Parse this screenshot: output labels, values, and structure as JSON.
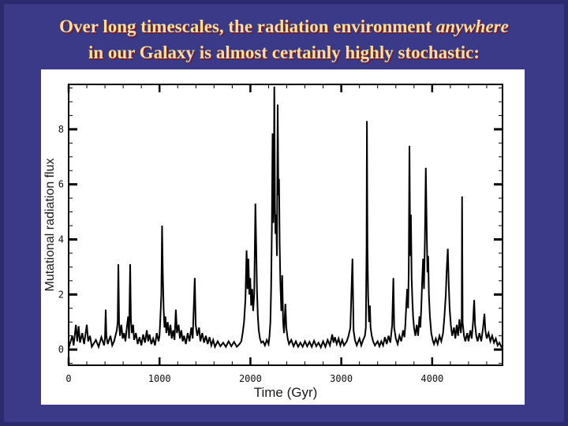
{
  "slide": {
    "title_line1_pre": "Over long timescales, the radiation environment ",
    "title_line1_emph": "anywhere",
    "title_line2": "in our Galaxy is almost certainly highly stochastic:"
  },
  "colors": {
    "background": "#3a3a88",
    "frame_shade": "#2b2a6e",
    "title_text": "#f2dfa6",
    "title_shadow": "#7a1e1e",
    "panel": "#ffffff",
    "axis": "#000000",
    "line": "#000000"
  },
  "chart_data": {
    "type": "line",
    "title": "",
    "xlabel": "Time (Gyr)",
    "ylabel": "Mutational radiation flux",
    "xlim": [
      0,
      4774
    ],
    "ylim": [
      -0.57,
      9.63
    ],
    "xticks_major": [
      0,
      1000,
      2000,
      3000,
      4000
    ],
    "xtick_labels": [
      "0",
      "1000",
      "2000",
      "3000",
      "4000"
    ],
    "xminor_step": 200,
    "yticks_major": [
      0,
      2,
      4,
      6,
      8
    ],
    "ytick_labels": [
      "0",
      "2",
      "4",
      "6",
      "8"
    ],
    "yminor_step": 0.5,
    "grid": false,
    "legend": "none",
    "series": [
      {
        "name": "mutational radiation flux",
        "points": [
          [
            0,
            0.05
          ],
          [
            40,
            0.5
          ],
          [
            55,
            0.15
          ],
          [
            80,
            0.9
          ],
          [
            95,
            0.3
          ],
          [
            110,
            0.85
          ],
          [
            125,
            0.25
          ],
          [
            150,
            0.6
          ],
          [
            170,
            0.2
          ],
          [
            200,
            0.9
          ],
          [
            215,
            0.3
          ],
          [
            235,
            0.5
          ],
          [
            255,
            0.1
          ],
          [
            300,
            0.35
          ],
          [
            330,
            0.1
          ],
          [
            360,
            0.45
          ],
          [
            390,
            0.15
          ],
          [
            400,
            0.4
          ],
          [
            408,
            1.45
          ],
          [
            415,
            0.5
          ],
          [
            430,
            0.2
          ],
          [
            460,
            0.5
          ],
          [
            480,
            0.15
          ],
          [
            500,
            0.3
          ],
          [
            530,
            0.7
          ],
          [
            540,
            1.0
          ],
          [
            547,
            3.1
          ],
          [
            555,
            1.0
          ],
          [
            565,
            0.5
          ],
          [
            580,
            0.9
          ],
          [
            595,
            0.4
          ],
          [
            610,
            0.6
          ],
          [
            625,
            0.3
          ],
          [
            640,
            0.8
          ],
          [
            655,
            1.2
          ],
          [
            665,
            0.4
          ],
          [
            677,
            3.1
          ],
          [
            685,
            1.1
          ],
          [
            695,
            0.6
          ],
          [
            710,
            0.9
          ],
          [
            720,
            0.35
          ],
          [
            740,
            0.6
          ],
          [
            760,
            0.2
          ],
          [
            780,
            0.45
          ],
          [
            800,
            0.15
          ],
          [
            820,
            0.55
          ],
          [
            840,
            0.25
          ],
          [
            860,
            0.7
          ],
          [
            875,
            0.3
          ],
          [
            890,
            0.55
          ],
          [
            910,
            0.2
          ],
          [
            930,
            0.4
          ],
          [
            950,
            0.15
          ],
          [
            970,
            0.6
          ],
          [
            990,
            0.3
          ],
          [
            1000,
            0.5
          ],
          [
            1010,
            1.2
          ],
          [
            1020,
            2.0
          ],
          [
            1028,
            4.5
          ],
          [
            1036,
            2.8
          ],
          [
            1045,
            1.5
          ],
          [
            1055,
            0.8
          ],
          [
            1065,
            1.2
          ],
          [
            1075,
            0.6
          ],
          [
            1090,
            1.0
          ],
          [
            1105,
            0.5
          ],
          [
            1120,
            0.9
          ],
          [
            1135,
            0.4
          ],
          [
            1150,
            0.7
          ],
          [
            1165,
            0.35
          ],
          [
            1180,
            1.45
          ],
          [
            1192,
            0.6
          ],
          [
            1210,
            0.9
          ],
          [
            1225,
            0.4
          ],
          [
            1240,
            0.7
          ],
          [
            1255,
            0.3
          ],
          [
            1270,
            0.5
          ],
          [
            1290,
            0.2
          ],
          [
            1310,
            0.6
          ],
          [
            1330,
            0.3
          ],
          [
            1350,
            0.8
          ],
          [
            1365,
            0.4
          ],
          [
            1388,
            2.6
          ],
          [
            1398,
            0.9
          ],
          [
            1415,
            0.5
          ],
          [
            1435,
            0.8
          ],
          [
            1450,
            0.3
          ],
          [
            1470,
            0.6
          ],
          [
            1490,
            0.25
          ],
          [
            1510,
            0.5
          ],
          [
            1530,
            0.2
          ],
          [
            1550,
            0.45
          ],
          [
            1570,
            0.15
          ],
          [
            1590,
            0.35
          ],
          [
            1610,
            0.1
          ],
          [
            1640,
            0.3
          ],
          [
            1670,
            0.12
          ],
          [
            1700,
            0.25
          ],
          [
            1730,
            0.1
          ],
          [
            1760,
            0.3
          ],
          [
            1790,
            0.12
          ],
          [
            1820,
            0.28
          ],
          [
            1850,
            0.1
          ],
          [
            1880,
            0.2
          ],
          [
            1900,
            0.3
          ],
          [
            1915,
            0.6
          ],
          [
            1930,
            1.0
          ],
          [
            1945,
            1.8
          ],
          [
            1958,
            3.6
          ],
          [
            1968,
            2.2
          ],
          [
            1978,
            3.3
          ],
          [
            1988,
            2.0
          ],
          [
            1998,
            2.6
          ],
          [
            2008,
            1.6
          ],
          [
            2020,
            2.2
          ],
          [
            2030,
            1.4
          ],
          [
            2042,
            2.0
          ],
          [
            2055,
            5.3
          ],
          [
            2063,
            3.9
          ],
          [
            2072,
            2.2
          ],
          [
            2082,
            1.2
          ],
          [
            2092,
            0.7
          ],
          [
            2105,
            0.4
          ],
          [
            2120,
            0.25
          ],
          [
            2140,
            0.3
          ],
          [
            2160,
            0.15
          ],
          [
            2180,
            0.35
          ],
          [
            2200,
            0.2
          ],
          [
            2210,
            0.5
          ],
          [
            2220,
            1.0
          ],
          [
            2228,
            2.2
          ],
          [
            2236,
            4.4
          ],
          [
            2244,
            7.85
          ],
          [
            2252,
            4.6
          ],
          [
            2258,
            5.9
          ],
          [
            2263,
            9.55
          ],
          [
            2270,
            5.2
          ],
          [
            2276,
            4.2
          ],
          [
            2284,
            4.9
          ],
          [
            2292,
            3.4
          ],
          [
            2300,
            8.9
          ],
          [
            2308,
            5.6
          ],
          [
            2315,
            6.2
          ],
          [
            2322,
            3.8
          ],
          [
            2330,
            2.4
          ],
          [
            2340,
            1.4
          ],
          [
            2350,
            2.7
          ],
          [
            2360,
            1.0
          ],
          [
            2370,
            0.6
          ],
          [
            2385,
            1.66
          ],
          [
            2395,
            0.8
          ],
          [
            2410,
            0.4
          ],
          [
            2425,
            0.2
          ],
          [
            2450,
            0.35
          ],
          [
            2475,
            0.12
          ],
          [
            2500,
            0.3
          ],
          [
            2525,
            0.1
          ],
          [
            2550,
            0.25
          ],
          [
            2575,
            0.1
          ],
          [
            2600,
            0.3
          ],
          [
            2625,
            0.12
          ],
          [
            2650,
            0.28
          ],
          [
            2675,
            0.1
          ],
          [
            2700,
            0.32
          ],
          [
            2725,
            0.12
          ],
          [
            2750,
            0.25
          ],
          [
            2775,
            0.08
          ],
          [
            2800,
            0.3
          ],
          [
            2825,
            0.1
          ],
          [
            2850,
            0.35
          ],
          [
            2875,
            0.15
          ],
          [
            2900,
            0.55
          ],
          [
            2915,
            0.25
          ],
          [
            2930,
            0.45
          ],
          [
            2950,
            0.2
          ],
          [
            2970,
            0.4
          ],
          [
            2990,
            0.15
          ],
          [
            3010,
            0.35
          ],
          [
            3030,
            0.15
          ],
          [
            3060,
            0.3
          ],
          [
            3080,
            0.5
          ],
          [
            3100,
            0.8
          ],
          [
            3123,
            3.3
          ],
          [
            3135,
            0.7
          ],
          [
            3150,
            0.35
          ],
          [
            3170,
            0.15
          ],
          [
            3200,
            0.4
          ],
          [
            3220,
            0.15
          ],
          [
            3240,
            0.35
          ],
          [
            3260,
            0.5
          ],
          [
            3270,
            0.8
          ],
          [
            3278,
            3.7
          ],
          [
            3282,
            8.3
          ],
          [
            3288,
            3.7
          ],
          [
            3295,
            2.0
          ],
          [
            3305,
            1.0
          ],
          [
            3315,
            1.6
          ],
          [
            3322,
            0.8
          ],
          [
            3335,
            0.5
          ],
          [
            3350,
            0.3
          ],
          [
            3370,
            0.15
          ],
          [
            3400,
            0.3
          ],
          [
            3420,
            0.12
          ],
          [
            3440,
            0.3
          ],
          [
            3460,
            0.15
          ],
          [
            3480,
            0.45
          ],
          [
            3500,
            0.2
          ],
          [
            3520,
            0.5
          ],
          [
            3540,
            0.25
          ],
          [
            3560,
            0.9
          ],
          [
            3573,
            2.6
          ],
          [
            3582,
            0.8
          ],
          [
            3600,
            0.4
          ],
          [
            3620,
            0.2
          ],
          [
            3640,
            0.5
          ],
          [
            3660,
            0.3
          ],
          [
            3680,
            0.7
          ],
          [
            3695,
            0.45
          ],
          [
            3705,
            0.9
          ],
          [
            3715,
            1.6
          ],
          [
            3725,
            2.2
          ],
          [
            3735,
            1.5
          ],
          [
            3742,
            2.8
          ],
          [
            3750,
            7.4
          ],
          [
            3758,
            3.4
          ],
          [
            3766,
            4.9
          ],
          [
            3774,
            2.6
          ],
          [
            3782,
            1.8
          ],
          [
            3790,
            1.2
          ],
          [
            3800,
            0.8
          ],
          [
            3815,
            0.5
          ],
          [
            3830,
            0.9
          ],
          [
            3845,
            0.5
          ],
          [
            3860,
            1.2
          ],
          [
            3870,
            0.8
          ],
          [
            3880,
            1.5
          ],
          [
            3890,
            2.5
          ],
          [
            3900,
            3.3
          ],
          [
            3910,
            2.2
          ],
          [
            3920,
            4.0
          ],
          [
            3930,
            6.6
          ],
          [
            3940,
            4.3
          ],
          [
            3948,
            2.8
          ],
          [
            3956,
            3.4
          ],
          [
            3964,
            2.0
          ],
          [
            3975,
            1.2
          ],
          [
            3990,
            0.6
          ],
          [
            4005,
            0.35
          ],
          [
            4020,
            0.2
          ],
          [
            4040,
            0.4
          ],
          [
            4060,
            0.2
          ],
          [
            4080,
            0.5
          ],
          [
            4100,
            0.3
          ],
          [
            4120,
            0.6
          ],
          [
            4135,
            1.2
          ],
          [
            4150,
            2.0
          ],
          [
            4160,
            2.9
          ],
          [
            4172,
            3.66
          ],
          [
            4182,
            2.4
          ],
          [
            4192,
            1.5
          ],
          [
            4205,
            0.9
          ],
          [
            4220,
            0.5
          ],
          [
            4240,
            0.8
          ],
          [
            4255,
            0.4
          ],
          [
            4270,
            0.9
          ],
          [
            4285,
            0.5
          ],
          [
            4300,
            1.1
          ],
          [
            4315,
            0.6
          ],
          [
            4325,
            1.0
          ],
          [
            4329,
            5.56
          ],
          [
            4335,
            1.0
          ],
          [
            4350,
            0.5
          ],
          [
            4365,
            0.3
          ],
          [
            4385,
            0.6
          ],
          [
            4400,
            0.3
          ],
          [
            4420,
            0.7
          ],
          [
            4435,
            0.4
          ],
          [
            4450,
            1.0
          ],
          [
            4462,
            1.8
          ],
          [
            4472,
            0.9
          ],
          [
            4485,
            0.5
          ],
          [
            4500,
            0.3
          ],
          [
            4520,
            0.6
          ],
          [
            4540,
            0.3
          ],
          [
            4560,
            0.8
          ],
          [
            4575,
            1.3
          ],
          [
            4585,
            0.7
          ],
          [
            4600,
            0.4
          ],
          [
            4620,
            0.6
          ],
          [
            4640,
            0.3
          ],
          [
            4660,
            0.5
          ],
          [
            4680,
            0.25
          ],
          [
            4700,
            0.4
          ],
          [
            4720,
            0.15
          ],
          [
            4740,
            0.25
          ],
          [
            4760,
            0.1
          ],
          [
            4774,
            0.05
          ]
        ]
      }
    ]
  }
}
